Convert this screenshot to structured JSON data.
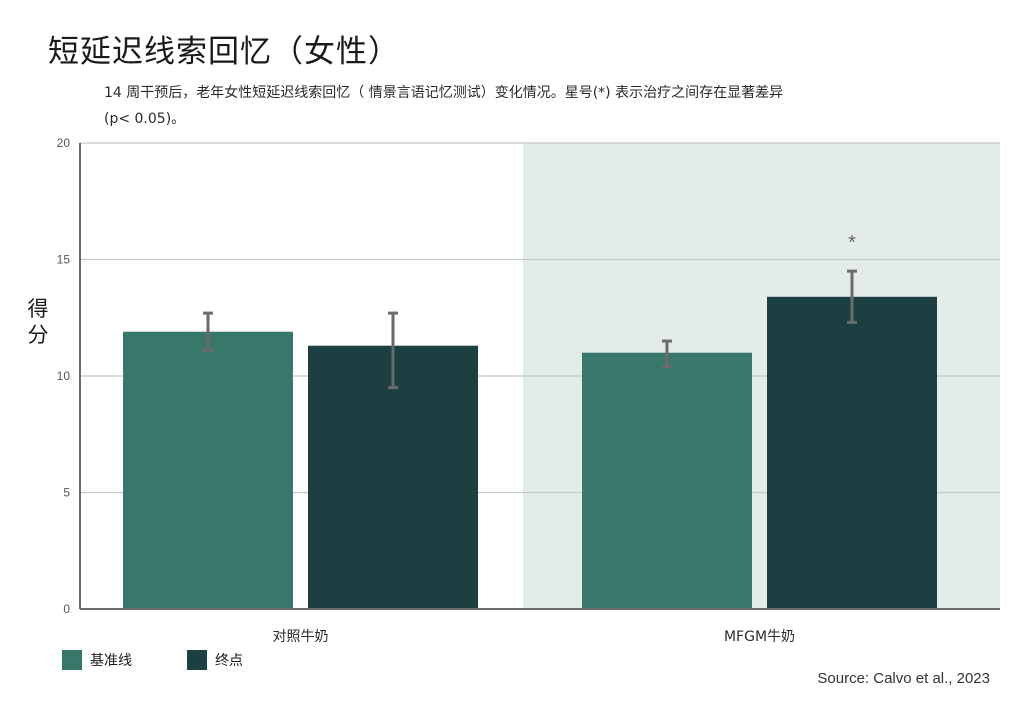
{
  "title": "短延迟线索回忆（女性）",
  "subtitle": "14 周干预后，老年女性短延迟线索回忆（ 情景言语记忆测试）变化情况。星号(*) 表示治疗之间存在显著差异 (p< 0.05)。",
  "source": "Source: Calvo et al., 2023",
  "chart_data": {
    "type": "bar",
    "title": "短延迟线索回忆（女性）",
    "ylabel": "得分",
    "xlabel": "",
    "ylim": [
      0,
      20
    ],
    "yticks": [
      0,
      5,
      10,
      15,
      20
    ],
    "categories": [
      "对照牛奶",
      "MFGM牛奶"
    ],
    "grid": true,
    "legend_position": "bottom-left",
    "highlight_category": "MFGM牛奶",
    "series": [
      {
        "name": "基准线",
        "color": "#37786a",
        "values": [
          11.9,
          11.0
        ],
        "error_low": [
          11.1,
          10.4
        ],
        "error_high": [
          12.7,
          11.5
        ]
      },
      {
        "name": "终点",
        "color": "#1c3f42",
        "values": [
          11.3,
          13.4
        ],
        "error_low": [
          9.5,
          12.3
        ],
        "error_high": [
          12.7,
          14.5
        ]
      }
    ],
    "annotations": [
      {
        "text": "*",
        "category": "MFGM牛奶",
        "series": "终点"
      }
    ]
  }
}
